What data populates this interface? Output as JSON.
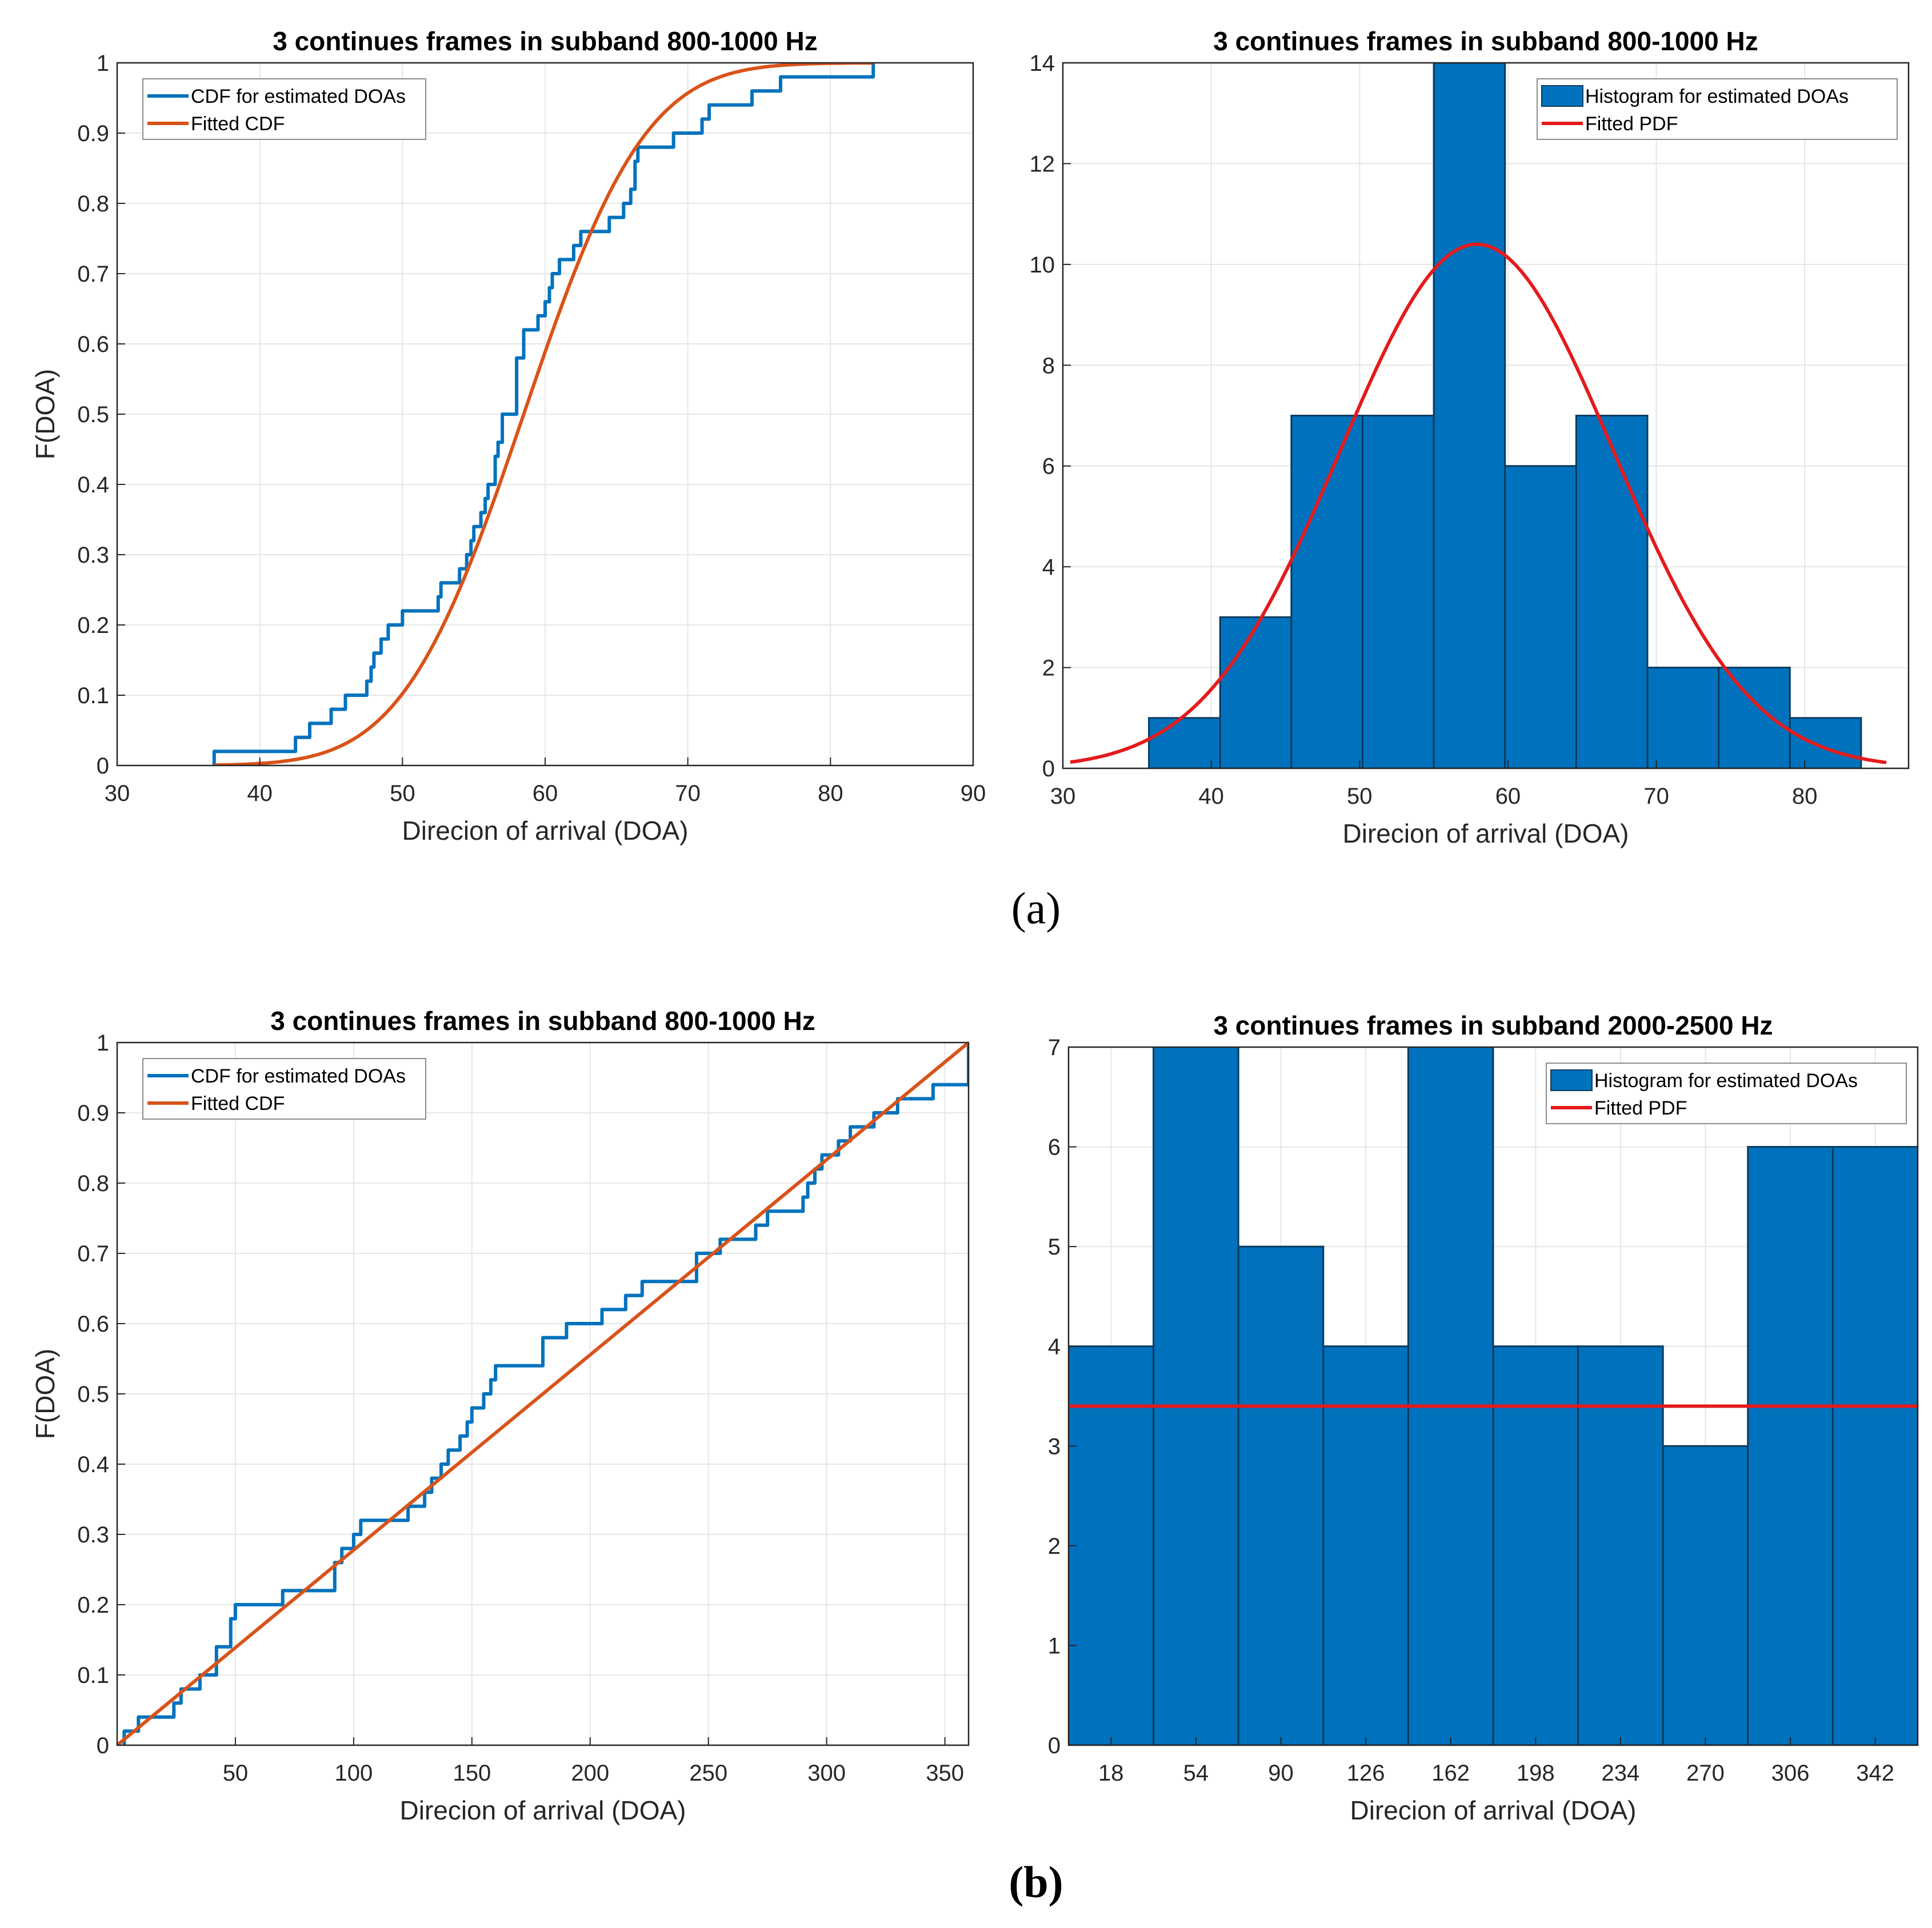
{
  "figure": {
    "captions": {
      "a": "(a)",
      "b": "(b)"
    }
  },
  "colors": {
    "cdf_empirical": "#0072BD",
    "cdf_fitted": "#D95319",
    "histogram_fill": "#0072BD",
    "histogram_edge": "#0B3A5E",
    "pdf_fitted": "#E41A1C",
    "grid": "#E6E6E6",
    "axis": "#262626"
  },
  "chart_data": [
    {
      "id": "a-left",
      "type": "line",
      "title": "3 continues frames in subband 800-1000 Hz",
      "xlabel": "Direcion of arrival (DOA)",
      "ylabel": "F(DOA)",
      "xlim": [
        30,
        90
      ],
      "ylim": [
        0,
        1
      ],
      "xticks": [
        30,
        40,
        50,
        60,
        70,
        80,
        90
      ],
      "yticks": [
        0,
        0.1,
        0.2,
        0.3,
        0.4,
        0.5,
        0.6,
        0.7,
        0.8,
        0.9,
        1
      ],
      "grid": true,
      "legend_position": "top-left",
      "series": [
        {
          "name": "CDF for estimated DOAs",
          "style": "step",
          "color": "#0072BD",
          "x": [
            36.8,
            42.5,
            43.5,
            44.0,
            45.0,
            46.0,
            47.5,
            47.8,
            48.0,
            48.5,
            49.0,
            50.0,
            52.5,
            52.7,
            54.0,
            54.5,
            54.8,
            55.0,
            55.5,
            55.8,
            56.0,
            56.5,
            56.7,
            57.0,
            58.0,
            58.5,
            59.5,
            60.0,
            60.3,
            60.5,
            61.0,
            62.0,
            62.5,
            63.0,
            64.5,
            65.5,
            66.0,
            66.3,
            66.5,
            69.0,
            71.0,
            71.5,
            74.5,
            76.5,
            83.0
          ],
          "y": [
            0.02,
            0.04,
            0.06,
            0.06,
            0.08,
            0.1,
            0.12,
            0.14,
            0.16,
            0.18,
            0.2,
            0.22,
            0.24,
            0.26,
            0.28,
            0.3,
            0.32,
            0.34,
            0.36,
            0.38,
            0.4,
            0.44,
            0.46,
            0.5,
            0.58,
            0.62,
            0.64,
            0.66,
            0.68,
            0.7,
            0.72,
            0.74,
            0.76,
            0.76,
            0.78,
            0.8,
            0.82,
            0.86,
            0.88,
            0.9,
            0.92,
            0.94,
            0.96,
            0.98,
            1.0
          ]
        },
        {
          "name": "Fitted CDF",
          "style": "normal-cdf",
          "color": "#D95319",
          "mu": 58.5,
          "sigma": 6.7,
          "x_range": [
            36.8,
            83.0
          ]
        }
      ]
    },
    {
      "id": "a-right",
      "type": "bar",
      "title": "3 continues frames in subband 800-1000 Hz",
      "xlabel": "Direcion of arrival (DOA)",
      "ylabel": "",
      "xlim": [
        30,
        87
      ],
      "ylim": [
        0,
        14
      ],
      "xticks": [
        30,
        40,
        50,
        60,
        70,
        80
      ],
      "yticks": [
        0,
        2,
        4,
        6,
        8,
        10,
        12,
        14
      ],
      "grid": true,
      "legend_position": "top-right",
      "bin_edges": [
        35.8,
        40.6,
        45.4,
        50.2,
        55.0,
        59.8,
        64.6,
        69.4,
        74.2,
        79.0,
        83.8
      ],
      "values": [
        1,
        3,
        7,
        7,
        14,
        6,
        7,
        2,
        2,
        1
      ],
      "series": [
        {
          "name": "Histogram for estimated DOAs",
          "style": "histogram",
          "color": "#0072BD"
        },
        {
          "name": "Fitted PDF",
          "style": "normal-pdf",
          "color": "#E41A1C",
          "mu": 57.9,
          "sigma": 9.2,
          "peak": 10.4,
          "x_range": [
            30.5,
            85.5
          ]
        }
      ]
    },
    {
      "id": "b-left",
      "type": "line",
      "title": "3 continues frames in subband 800-1000 Hz",
      "xlabel": "Direcion of arrival (DOA)",
      "ylabel": "F(DOA)",
      "xlim": [
        0,
        360
      ],
      "ylim": [
        0,
        1
      ],
      "xticks": [
        50,
        100,
        150,
        200,
        250,
        300,
        350
      ],
      "yticks": [
        0,
        0.1,
        0.2,
        0.3,
        0.4,
        0.5,
        0.6,
        0.7,
        0.8,
        0.9,
        1
      ],
      "grid": true,
      "legend_position": "top-left",
      "series": [
        {
          "name": "CDF for estimated DOAs",
          "style": "step",
          "color": "#0072BD",
          "x": [
            3,
            5,
            9,
            24,
            27,
            30,
            35,
            42,
            48,
            50,
            70,
            92,
            95,
            100,
            103,
            123,
            130,
            133,
            137,
            140,
            145,
            148,
            150,
            155,
            158,
            160,
            165,
            180,
            190,
            205,
            215,
            222,
            230,
            245,
            255,
            257,
            270,
            275,
            290,
            292,
            295,
            298,
            305,
            310,
            315,
            320,
            330,
            345,
            360
          ],
          "y": [
            0.02,
            0.02,
            0.04,
            0.06,
            0.08,
            0.08,
            0.1,
            0.14,
            0.18,
            0.2,
            0.22,
            0.26,
            0.28,
            0.3,
            0.32,
            0.34,
            0.36,
            0.38,
            0.4,
            0.42,
            0.44,
            0.46,
            0.48,
            0.5,
            0.52,
            0.54,
            0.54,
            0.58,
            0.6,
            0.62,
            0.64,
            0.66,
            0.66,
            0.7,
            0.72,
            0.72,
            0.74,
            0.76,
            0.78,
            0.8,
            0.82,
            0.84,
            0.86,
            0.88,
            0.88,
            0.9,
            0.92,
            0.94,
            1.0
          ]
        },
        {
          "name": "Fitted CDF",
          "style": "uniform-cdf",
          "color": "#D95319",
          "x_range": [
            0,
            360
          ]
        }
      ]
    },
    {
      "id": "b-right",
      "type": "bar",
      "title": "3 continues frames in subband 2000-2500 Hz",
      "xlabel": "Direcion of arrival (DOA)",
      "ylabel": "",
      "xlim": [
        0,
        360
      ],
      "ylim": [
        0,
        7
      ],
      "xticks": [
        18,
        54,
        90,
        126,
        162,
        198,
        234,
        270,
        306,
        342
      ],
      "yticks": [
        0,
        1,
        2,
        3,
        4,
        5,
        6,
        7
      ],
      "grid": true,
      "legend_position": "top-right",
      "bin_edges": [
        0,
        36,
        72,
        108,
        144,
        180,
        216,
        252,
        288,
        324,
        360
      ],
      "values": [
        4,
        7,
        5,
        4,
        7,
        4,
        4,
        3,
        6,
        6
      ],
      "series": [
        {
          "name": "Histogram for estimated DOAs",
          "style": "histogram",
          "color": "#0072BD"
        },
        {
          "name": "Fitted PDF",
          "style": "constant",
          "color": "#E41A1C",
          "level": 3.4,
          "x_range": [
            0,
            360
          ]
        }
      ]
    }
  ]
}
